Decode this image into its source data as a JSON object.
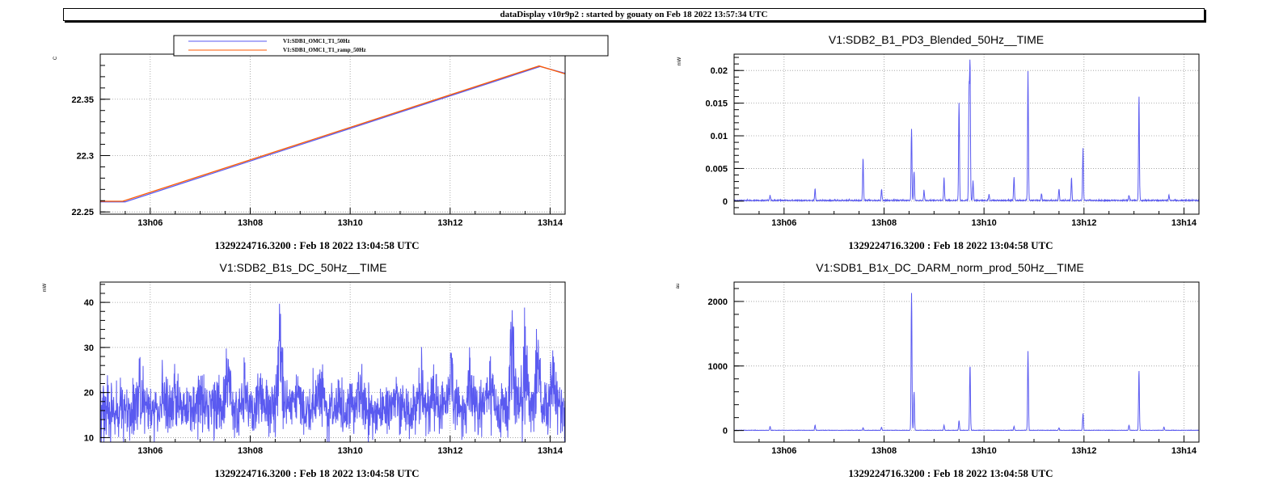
{
  "header": {
    "title": "dataDisplay v10r9p2 : started by gouaty on Feb 18 2022 13:57:34 UTC"
  },
  "colors": {
    "blue": "#5a5af0",
    "orange": "#ff5a00",
    "grid": "#9a9a9a",
    "axis": "#000000"
  },
  "chart_data": [
    {
      "type": "line",
      "title": "",
      "ylabel": "C",
      "xlabel": "",
      "footer": "1329224716.3200 : Feb 18 2022 13:04:58 UTC",
      "legend": {
        "position": "top",
        "entries": [
          "V1:SDB1_OMC1_T1_50Hz",
          "V1:SDB1_OMC1_T1_ramp_50Hz"
        ]
      },
      "xlim": [
        5.0,
        14.3
      ],
      "ylim": [
        22.248,
        22.39
      ],
      "xticks": [
        6,
        8,
        10,
        12,
        14
      ],
      "xticklabels": [
        "13h06",
        "13h08",
        "13h10",
        "13h12",
        "13h14"
      ],
      "yticks": [
        22.25,
        22.3,
        22.35
      ],
      "yticklabels": [
        "22.25",
        "22.3",
        "22.35"
      ],
      "grid": true,
      "series": [
        {
          "name": "V1:SDB1_OMC1_T1_50Hz",
          "color": "#5a5af0",
          "x": [
            5.0,
            5.5,
            13.8,
            14.3
          ],
          "y": [
            22.259,
            22.259,
            22.379,
            22.373
          ]
        },
        {
          "name": "V1:SDB1_OMC1_T1_ramp_50Hz",
          "color": "#ff5a00",
          "x": [
            5.0,
            5.45,
            13.78,
            14.3
          ],
          "y": [
            22.2595,
            22.2595,
            22.3795,
            22.3725
          ]
        }
      ]
    },
    {
      "type": "line",
      "title": "V1:SDB2_B1_PD3_Blended_50Hz__TIME",
      "ylabel": "mW",
      "xlabel": "",
      "footer": "1329224716.3200 : Feb 18 2022 13:04:58 UTC",
      "xlim": [
        5.0,
        14.3
      ],
      "ylim": [
        -0.002,
        0.0225
      ],
      "xticks": [
        6,
        8,
        10,
        12,
        14
      ],
      "xticklabels": [
        "13h06",
        "13h08",
        "13h10",
        "13h12",
        "13h14"
      ],
      "yticks": [
        0,
        0.005,
        0.01,
        0.015,
        0.02
      ],
      "yticklabels": [
        "0",
        "0.005",
        "0.01",
        "0.015",
        "0.02"
      ],
      "grid": true,
      "baseline": 0.0001,
      "noise": 0.0002,
      "spikes": [
        [
          5.72,
          0.0008
        ],
        [
          6.62,
          0.0018
        ],
        [
          7.58,
          0.0065
        ],
        [
          7.95,
          0.0018
        ],
        [
          8.55,
          0.011
        ],
        [
          8.6,
          0.0045
        ],
        [
          8.8,
          0.0015
        ],
        [
          9.2,
          0.0035
        ],
        [
          9.5,
          0.015
        ],
        [
          9.7,
          0.0165
        ],
        [
          9.72,
          0.0205
        ],
        [
          9.78,
          0.003
        ],
        [
          10.1,
          0.001
        ],
        [
          10.6,
          0.0035
        ],
        [
          10.88,
          0.0198
        ],
        [
          11.15,
          0.001
        ],
        [
          11.5,
          0.0018
        ],
        [
          11.75,
          0.0035
        ],
        [
          11.98,
          0.008
        ],
        [
          12.9,
          0.0008
        ],
        [
          13.1,
          0.016
        ],
        [
          13.7,
          0.0008
        ]
      ]
    },
    {
      "type": "line",
      "title": "V1:SDB2_B1s_DC_50Hz__TIME",
      "ylabel": "mW",
      "xlabel": "",
      "footer": "1329224716.3200 : Feb 18 2022 13:04:58 UTC",
      "xlim": [
        5.0,
        14.3
      ],
      "ylim": [
        9.0,
        44.5
      ],
      "xticks": [
        6,
        8,
        10,
        12,
        14
      ],
      "xticklabels": [
        "13h06",
        "13h08",
        "13h10",
        "13h12",
        "13h14"
      ],
      "yticks": [
        10,
        20,
        30,
        40
      ],
      "yticklabels": [
        "10",
        "20",
        "30",
        "40"
      ],
      "grid": true,
      "baseline": 16.5,
      "noise": 3.0,
      "spikes": [
        [
          5.1,
          2
        ],
        [
          5.8,
          6
        ],
        [
          6.5,
          5
        ],
        [
          7.0,
          6
        ],
        [
          7.55,
          11
        ],
        [
          7.9,
          6
        ],
        [
          8.2,
          7
        ],
        [
          8.6,
          21
        ],
        [
          9.0,
          9
        ],
        [
          9.4,
          9
        ],
        [
          10.2,
          6
        ],
        [
          10.9,
          7
        ],
        [
          11.4,
          8
        ],
        [
          11.7,
          9
        ],
        [
          12.0,
          14
        ],
        [
          12.4,
          13
        ],
        [
          12.8,
          12
        ],
        [
          13.25,
          24
        ],
        [
          13.5,
          21
        ],
        [
          13.75,
          18
        ],
        [
          14.05,
          9
        ]
      ]
    },
    {
      "type": "line",
      "title": "V1:SDB1_B1x_DC_DARM_norm_prod_50Hz__TIME",
      "ylabel": "au",
      "xlabel": "",
      "footer": "1329224716.3200 : Feb 18 2022 13:04:58 UTC",
      "xlim": [
        5.0,
        14.3
      ],
      "ylim": [
        -180,
        2300
      ],
      "xticks": [
        6,
        8,
        10,
        12,
        14
      ],
      "xticklabels": [
        "13h06",
        "13h08",
        "13h10",
        "13h12",
        "13h14"
      ],
      "yticks": [
        0,
        1000,
        2000
      ],
      "yticklabels": [
        "0",
        "1000",
        "2000"
      ],
      "grid": true,
      "baseline": 3,
      "noise": 6,
      "spikes": [
        [
          5.72,
          60
        ],
        [
          6.62,
          80
        ],
        [
          7.58,
          40
        ],
        [
          7.95,
          50
        ],
        [
          8.55,
          2130
        ],
        [
          8.6,
          600
        ],
        [
          9.2,
          80
        ],
        [
          9.5,
          150
        ],
        [
          9.72,
          1020
        ],
        [
          10.6,
          60
        ],
        [
          10.88,
          1230
        ],
        [
          11.5,
          40
        ],
        [
          11.98,
          260
        ],
        [
          12.9,
          80
        ],
        [
          13.1,
          930
        ],
        [
          13.6,
          50
        ]
      ]
    }
  ]
}
